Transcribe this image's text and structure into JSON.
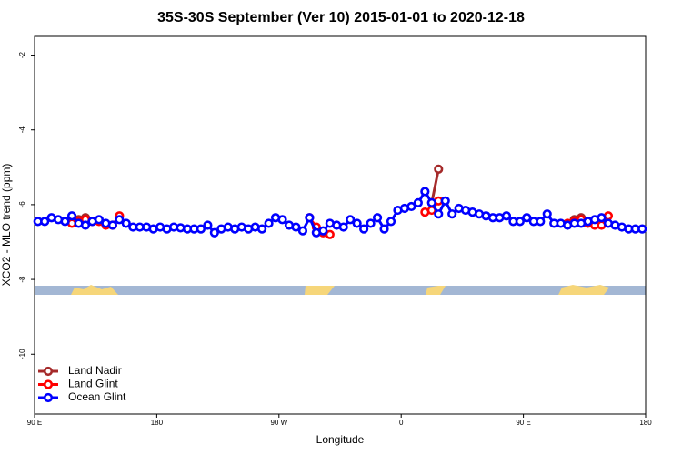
{
  "chart_data": {
    "type": "line",
    "title": "35S-30S September (Ver 10)   2015-01-01 to 2020-12-18",
    "x_label": "Longitude",
    "y_label": "XCO2 - MLO trend (ppm)",
    "xlim": [
      90,
      540
    ],
    "ylim": [
      -11.6,
      -1.5
    ],
    "xticks": [
      {
        "value": 90,
        "label": "90 E"
      },
      180,
      {
        "value": 270,
        "label": "90 W"
      },
      {
        "value": 360,
        "label": "0"
      },
      {
        "value": 450,
        "label": "90 E"
      },
      {
        "value": 540,
        "label": "180"
      }
    ],
    "yticks": [
      -2,
      -4,
      -6,
      -8,
      -10
    ],
    "legend": "bottom-left",
    "x": [
      92.5,
      97.5,
      102.5,
      107.5,
      112.5,
      117.5,
      122.5,
      127.5,
      132.5,
      137.5,
      142.5,
      147.5,
      152.5,
      157.5,
      162.5,
      167.5,
      172.5,
      177.5,
      182.5,
      187.5,
      192.5,
      197.5,
      202.5,
      207.5,
      212.5,
      217.5,
      222.5,
      227.5,
      232.5,
      237.5,
      242.5,
      247.5,
      252.5,
      257.5,
      262.5,
      267.5,
      272.5,
      277.5,
      282.5,
      287.5,
      292.5,
      297.5,
      302.5,
      307.5,
      312.5,
      317.5,
      322.5,
      327.5,
      332.5,
      337.5,
      342.5,
      347.5,
      352.5,
      357.5,
      362.5,
      367.5,
      372.5,
      377.5,
      382.5,
      387.5,
      392.5,
      397.5,
      402.5,
      407.5,
      412.5,
      417.5,
      422.5,
      427.5,
      432.5,
      437.5,
      442.5,
      447.5,
      452.5,
      457.5,
      462.5,
      467.5,
      472.5,
      477.5,
      482.5,
      487.5,
      492.5,
      497.5,
      502.5,
      507.5,
      512.5,
      517.5,
      522.5,
      527.5,
      532.5,
      537.5
    ],
    "series": [
      {
        "name": "Land Nadir",
        "color": "#a52a2a",
        "values": [
          null,
          null,
          null,
          null,
          null,
          null,
          -6.4,
          -6.35,
          null,
          null,
          null,
          null,
          null,
          null,
          null,
          null,
          null,
          null,
          null,
          null,
          null,
          null,
          null,
          null,
          null,
          null,
          null,
          null,
          null,
          null,
          null,
          null,
          null,
          null,
          null,
          null,
          null,
          null,
          null,
          null,
          null,
          null,
          null,
          null,
          null,
          null,
          null,
          null,
          null,
          null,
          null,
          null,
          null,
          null,
          null,
          null,
          null,
          null,
          -5.95,
          -5.05,
          null,
          null,
          null,
          null,
          null,
          null,
          null,
          null,
          null,
          null,
          null,
          null,
          null,
          null,
          null,
          null,
          null,
          null,
          null,
          -6.4,
          -6.35,
          null,
          null,
          null,
          null,
          null,
          null,
          null,
          null,
          null
        ]
      },
      {
        "name": "Land Glint",
        "color": "#ff0000",
        "values": [
          null,
          null,
          null,
          null,
          null,
          -6.5,
          -6.45,
          -6.4,
          -6.45,
          -6.45,
          -6.55,
          -6.55,
          -6.3,
          null,
          null,
          null,
          null,
          null,
          null,
          null,
          null,
          null,
          null,
          null,
          null,
          null,
          null,
          null,
          null,
          null,
          null,
          null,
          null,
          null,
          null,
          null,
          null,
          null,
          null,
          null,
          -6.35,
          -6.6,
          -6.75,
          -6.8,
          null,
          null,
          null,
          null,
          null,
          null,
          null,
          null,
          null,
          null,
          null,
          null,
          null,
          -6.2,
          -6.15,
          -5.9,
          null,
          null,
          null,
          null,
          null,
          null,
          null,
          null,
          null,
          null,
          null,
          null,
          null,
          null,
          null,
          null,
          null,
          null,
          -6.5,
          -6.45,
          -6.4,
          -6.5,
          -6.55,
          -6.55,
          -6.3,
          null,
          null,
          null,
          null,
          null
        ]
      },
      {
        "name": "Ocean Glint",
        "color": "#0000ff",
        "values": [
          -6.45,
          -6.45,
          -6.35,
          -6.4,
          -6.45,
          -6.3,
          -6.5,
          -6.55,
          -6.45,
          -6.4,
          -6.5,
          -6.55,
          -6.4,
          -6.5,
          -6.6,
          -6.6,
          -6.6,
          -6.65,
          -6.6,
          -6.65,
          -6.6,
          -6.62,
          -6.65,
          -6.65,
          -6.65,
          -6.55,
          -6.75,
          -6.65,
          -6.6,
          -6.65,
          -6.6,
          -6.65,
          -6.6,
          -6.65,
          -6.5,
          -6.35,
          -6.4,
          -6.55,
          -6.6,
          -6.7,
          -6.35,
          -6.75,
          -6.7,
          -6.5,
          -6.55,
          -6.6,
          -6.4,
          -6.5,
          -6.65,
          -6.5,
          -6.35,
          -6.65,
          -6.45,
          -6.15,
          -6.1,
          -6.05,
          -5.95,
          -5.65,
          -5.95,
          -6.25,
          -5.9,
          -6.25,
          -6.1,
          -6.15,
          -6.2,
          -6.25,
          -6.3,
          -6.35,
          -6.35,
          -6.3,
          -6.45,
          -6.45,
          -6.35,
          -6.45,
          -6.45,
          -6.25,
          -6.5,
          -6.5,
          -6.55,
          -6.5,
          -6.5,
          -6.45,
          -6.4,
          -6.35,
          -6.5,
          -6.55,
          -6.6,
          -6.65,
          -6.65,
          -6.65
        ]
      }
    ]
  }
}
